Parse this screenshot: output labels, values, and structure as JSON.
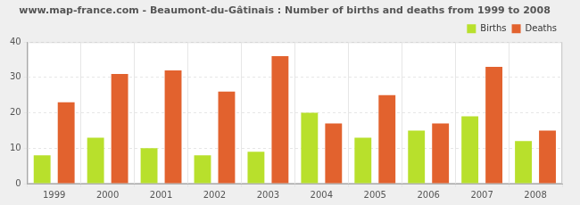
{
  "chart_data": {
    "type": "bar",
    "title": "www.map-france.com - Beaumont-du-Gâtinais : Number of births and deaths from 1999 to 2008",
    "categories": [
      "1999",
      "2000",
      "2001",
      "2002",
      "2003",
      "2004",
      "2005",
      "2006",
      "2007",
      "2008"
    ],
    "series": [
      {
        "name": "Births",
        "color": "#b8e02c",
        "values": [
          8,
          13,
          10,
          8,
          9,
          20,
          13,
          15,
          19,
          12
        ]
      },
      {
        "name": "Deaths",
        "color": "#e2622e",
        "values": [
          23,
          31,
          32,
          26,
          36,
          17,
          25,
          17,
          33,
          15
        ]
      }
    ],
    "ylim": [
      0,
      40
    ],
    "yticks": [
      0,
      10,
      20,
      30,
      40
    ],
    "grid": true,
    "legend": "upper right"
  }
}
